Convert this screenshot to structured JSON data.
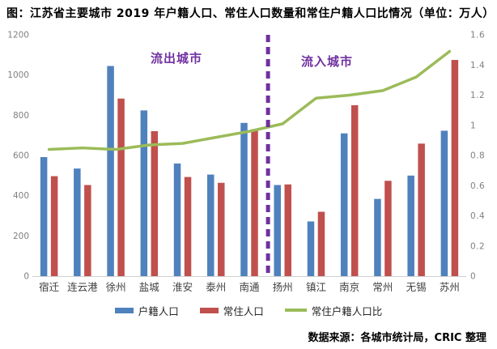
{
  "title": "图：江苏省主要城市 2019 年户籍人口、常住人口数量和常住户籍人口比情况（单位：万人）",
  "source": "数据来源：各城市统计局，CRIC 整理",
  "annotations": {
    "outflow": "流出城市",
    "inflow": "流入城市"
  },
  "colors": {
    "registered_bar": "#4F81BD",
    "resident_bar": "#C0504D",
    "ratio_line": "#9BBB59",
    "annotation_text": "#7030A0",
    "divider_line": "#7030A0",
    "axis_tick_text": "#808080",
    "category_text": "#404040",
    "axis_line": "#D0D0D0",
    "title_text": "#000000"
  },
  "chart_data": {
    "type": "bar",
    "subtype": "grouped-bar-with-secondary-axis-line",
    "title": "图：江苏省主要城市 2019 年户籍人口、常住人口数量和常住户籍人口比情况（单位：万人）",
    "unit": "万人",
    "categories": [
      "宿迁",
      "连云港",
      "徐州",
      "盐城",
      "淮安",
      "泰州",
      "南通",
      "扬州",
      "镇江",
      "南京",
      "常州",
      "无锡",
      "苏州"
    ],
    "series": [
      {
        "name": "户籍人口",
        "type": "bar",
        "axis": "left",
        "color": "#4F81BD",
        "values": [
          592,
          535,
          1045,
          824,
          560,
          505,
          762,
          453,
          272,
          710,
          384,
          500,
          723
        ]
      },
      {
        "name": "常住人口",
        "type": "bar",
        "axis": "left",
        "color": "#C0504D",
        "values": [
          497,
          453,
          883,
          721,
          493,
          464,
          730,
          456,
          320,
          850,
          474,
          659,
          1075
        ]
      },
      {
        "name": "常住户籍人口比",
        "type": "line",
        "axis": "right",
        "color": "#9BBB59",
        "values": [
          0.84,
          0.85,
          0.84,
          0.87,
          0.88,
          0.92,
          0.96,
          1.01,
          1.18,
          1.2,
          1.23,
          1.32,
          1.49
        ]
      }
    ],
    "left_axis": {
      "min": 0,
      "max": 1200,
      "tick_labels": [
        "0",
        "200",
        "400",
        "600",
        "800",
        "1000",
        "1200"
      ]
    },
    "right_axis": {
      "min": 0,
      "max": 1.6,
      "tick_labels": [
        "0",
        "0.2",
        "0.4",
        "0.6",
        "0.8",
        "1",
        "1.2",
        "1.4",
        "1.6"
      ]
    },
    "divider": {
      "between": [
        "南通",
        "扬州"
      ],
      "style": "dashed",
      "color": "#7030A0"
    },
    "legend_position": "bottom",
    "grid": false
  }
}
